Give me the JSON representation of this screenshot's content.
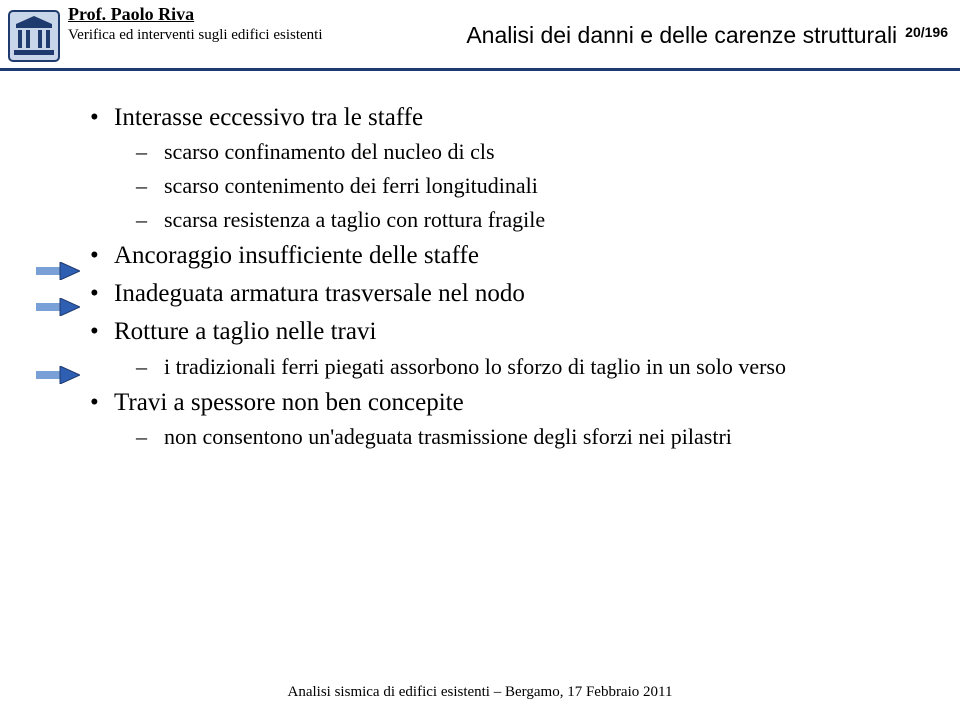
{
  "header": {
    "prof_name": "Prof. Paolo Riva",
    "subtitle": "Verifica ed interventi sugli edifici esistenti",
    "title": "Analisi dei danni e delle carenze strutturali",
    "page_num": "20/196"
  },
  "colors": {
    "rule": "#1f3a6e",
    "logo_border": "#1f3a6e",
    "logo_fill": "#c9d6ea",
    "arrow_head": "#2f5fb3",
    "arrow_head_stroke": "#1f3a6e",
    "arrow_tail": "#7aa0d8"
  },
  "bullets": [
    {
      "text": "Interasse eccessivo tra le staffe",
      "sub": [
        {
          "text": "scarso confinamento del nucleo di cls"
        },
        {
          "text": "scarso contenimento dei ferri longitudinali"
        },
        {
          "text": "scarsa resistenza a taglio con rottura fragile"
        }
      ]
    },
    {
      "text": "Ancoraggio insufficiente delle staffe"
    },
    {
      "text": "Inadeguata armatura trasversale nel nodo",
      "arrow": true
    },
    {
      "text": "Rotture a taglio nelle travi",
      "arrow": true,
      "sub": [
        {
          "text": "i tradizionali ferri piegati assorbono lo sforzo di taglio in un solo verso"
        }
      ]
    },
    {
      "text": "Travi a spessore non ben concepite",
      "arrow": true,
      "sub": [
        {
          "text": "non consentono un'adeguata trasmissione degli sforzi nei pilastri"
        }
      ]
    }
  ],
  "arrows_y": [
    262,
    298,
    366
  ],
  "footer": "Analisi sismica di edifici esistenti – Bergamo, 17 Febbraio 2011"
}
